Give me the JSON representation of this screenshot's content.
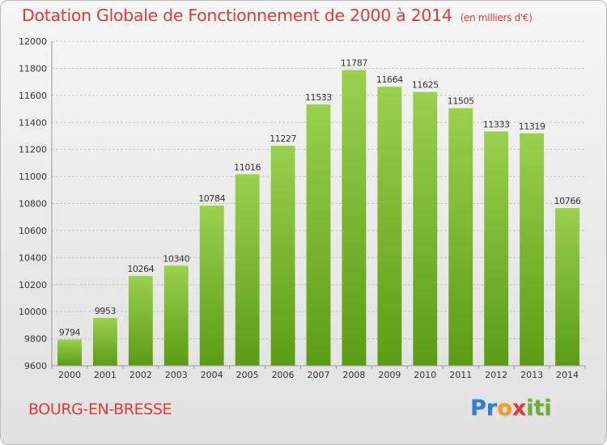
{
  "header": {
    "title": "Dotation Globale de Fonctionnement de 2000 à 2014",
    "subtitle": "(en milliers d'€)"
  },
  "footer": {
    "city": "BOURG-EN-BRESSE",
    "logo_letters": [
      "P",
      "r",
      "o",
      "x",
      "i",
      "t",
      "i"
    ],
    "logo_colors": [
      "#2b7fd6",
      "#2b7fd6",
      "#f0a020",
      "#e03a3a",
      "#6ab22e",
      "#6ab22e",
      "#6ab22e"
    ]
  },
  "colors": {
    "bar_top": "#9ad04e",
    "bar_bottom": "#5c9c14",
    "accent": "#e03a3a",
    "grid": "#c8c8c8",
    "axis_text": "#333333"
  },
  "chart_data": {
    "type": "bar",
    "categories": [
      "2000",
      "2001",
      "2002",
      "2003",
      "2004",
      "2005",
      "2006",
      "2007",
      "2008",
      "2009",
      "2010",
      "2011",
      "2012",
      "2013",
      "2014"
    ],
    "values": [
      9794,
      9953,
      10264,
      10340,
      10784,
      11016,
      11227,
      11533,
      11787,
      11664,
      11625,
      11505,
      11333,
      11319,
      10766
    ],
    "title": "Dotation Globale de Fonctionnement de 2000 à 2014",
    "subtitle": "(en milliers d'€)",
    "xlabel": "",
    "ylabel": "",
    "ylim": [
      9600,
      12000
    ],
    "yticks": [
      9600,
      9800,
      10000,
      10200,
      10400,
      10600,
      10800,
      11000,
      11200,
      11400,
      11600,
      11800,
      12000
    ],
    "grid": true,
    "legend": "none"
  }
}
